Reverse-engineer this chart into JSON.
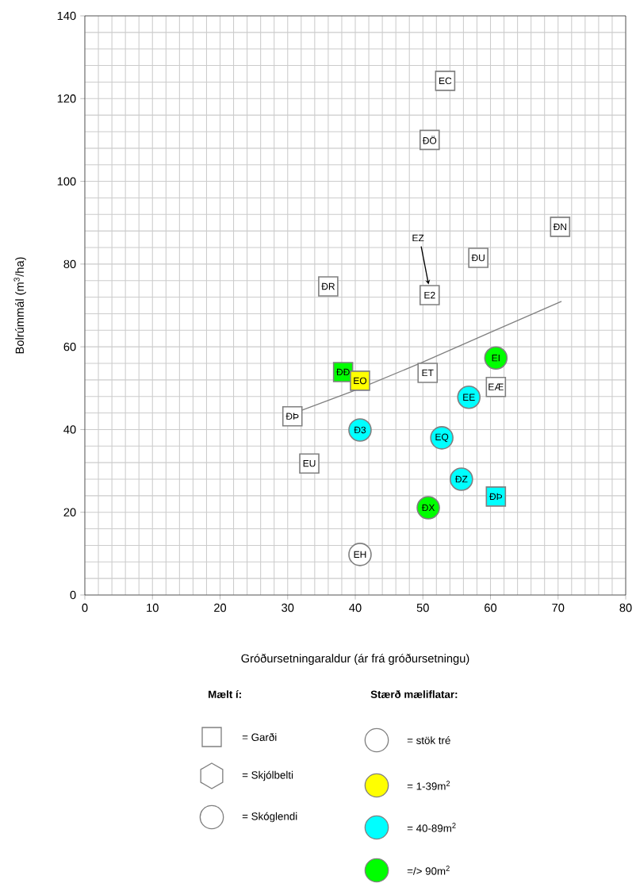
{
  "chart_data": {
    "type": "scatter",
    "xlabel": "Gróðursetningaraldur (ár frá gróðursetningu)",
    "ylabel": "Bolrúmmál (m$^{3}$/ha)",
    "xlim": [
      0,
      80
    ],
    "ylim": [
      0,
      140
    ],
    "xticks": [
      0,
      10,
      20,
      30,
      40,
      50,
      60,
      70,
      80
    ],
    "yticks": [
      0,
      20,
      40,
      60,
      80,
      100,
      120,
      140
    ],
    "grid": true,
    "series": [
      {
        "color": "#ffffff",
        "marker": "square",
        "x": [
          36,
          53.3,
          51,
          51,
          58.2,
          70.3,
          30.7,
          33.2,
          50.7,
          60.8
        ],
        "values": [
          74.6,
          124.3,
          110,
          72.5,
          81.5,
          89,
          43.2,
          31.8,
          53.7,
          50.3
        ]
      },
      {
        "color": "#00ff00",
        "marker": "square",
        "x": [
          38.2
        ],
        "values": [
          53.9
        ]
      },
      {
        "color": "#ffff00",
        "marker": "square",
        "x": [
          40.7
        ],
        "values": [
          51.8
        ]
      },
      {
        "color": "#00ffff",
        "marker": "square",
        "x": [
          60.8
        ],
        "values": [
          23.8
        ]
      },
      {
        "color": "#00ffff",
        "marker": "circle",
        "x": [
          40.7,
          56.8,
          52.8,
          55.7
        ],
        "values": [
          39.9,
          47.8,
          38,
          28
        ]
      },
      {
        "color": "#00ff00",
        "marker": "circle",
        "x": [
          60.8,
          50.8
        ],
        "values": [
          57.3,
          21.1
        ]
      },
      {
        "color": "#ffffff",
        "marker": "circle",
        "x": [
          40.7
        ],
        "values": [
          9.8
        ]
      },
      {
        "type": "line",
        "color": "#808080",
        "marker": "none",
        "line_style": "solid",
        "x": [
          32,
          40,
          50,
          60,
          70.5
        ],
        "values": [
          44.6,
          49.5,
          56.3,
          63.5,
          71
        ]
      }
    ],
    "annotations": [
      {
        "text": "ĐR",
        "x": 36,
        "y": 74.6
      },
      {
        "text": "EC",
        "x": 53.3,
        "y": 124.3
      },
      {
        "text": "ĐÖ",
        "x": 51,
        "y": 110
      },
      {
        "text": "E2",
        "x": 51,
        "y": 72.5
      },
      "EZ",
      {
        "text": "ĐU",
        "x": 58.2,
        "y": 81.5
      },
      {
        "text": "ĐN",
        "x": 70.3,
        "y": 89
      },
      {
        "text": "ĐÞ",
        "x": 30.7,
        "y": 43.2
      },
      {
        "text": "EU",
        "x": 33.2,
        "y": 31.8
      },
      {
        "text": "ET",
        "x": 50.7,
        "y": 53.7
      },
      {
        "text": "EÆ",
        "x": 60.8,
        "y": 50.3
      },
      {
        "text": "ĐĐ",
        "x": 38.2,
        "y": 53.9
      },
      {
        "text": "EO",
        "x": 40.7,
        "y": 51.8
      },
      {
        "text": "ĐÞ",
        "x": 60.8,
        "y": 23.8
      },
      {
        "text": "Đ3",
        "x": 40.7,
        "y": 39.9
      },
      {
        "text": "EE",
        "x": 56.8,
        "y": 47.8
      },
      {
        "text": "EQ",
        "x": 52.8,
        "y": 38
      },
      {
        "text": "ĐZ",
        "x": 55.7,
        "y": 28
      },
      {
        "text": "EI",
        "x": 60.8,
        "y": 57.3
      },
      {
        "text": "ĐX",
        "x": 50.8,
        "y": 21.1
      },
      {
        "text": "EH",
        "x": 40.7,
        "y": 9.8
      },
      "Mælt í:",
      "= Garði",
      "= Skjólbelti",
      "= Skóglendi",
      "Stærð mæliflatar:",
      "= stök tré",
      "= 1-39m$^{2}$",
      "= 40-89m$^{2}$",
      "=/> 90m$^{2}$"
    ]
  }
}
